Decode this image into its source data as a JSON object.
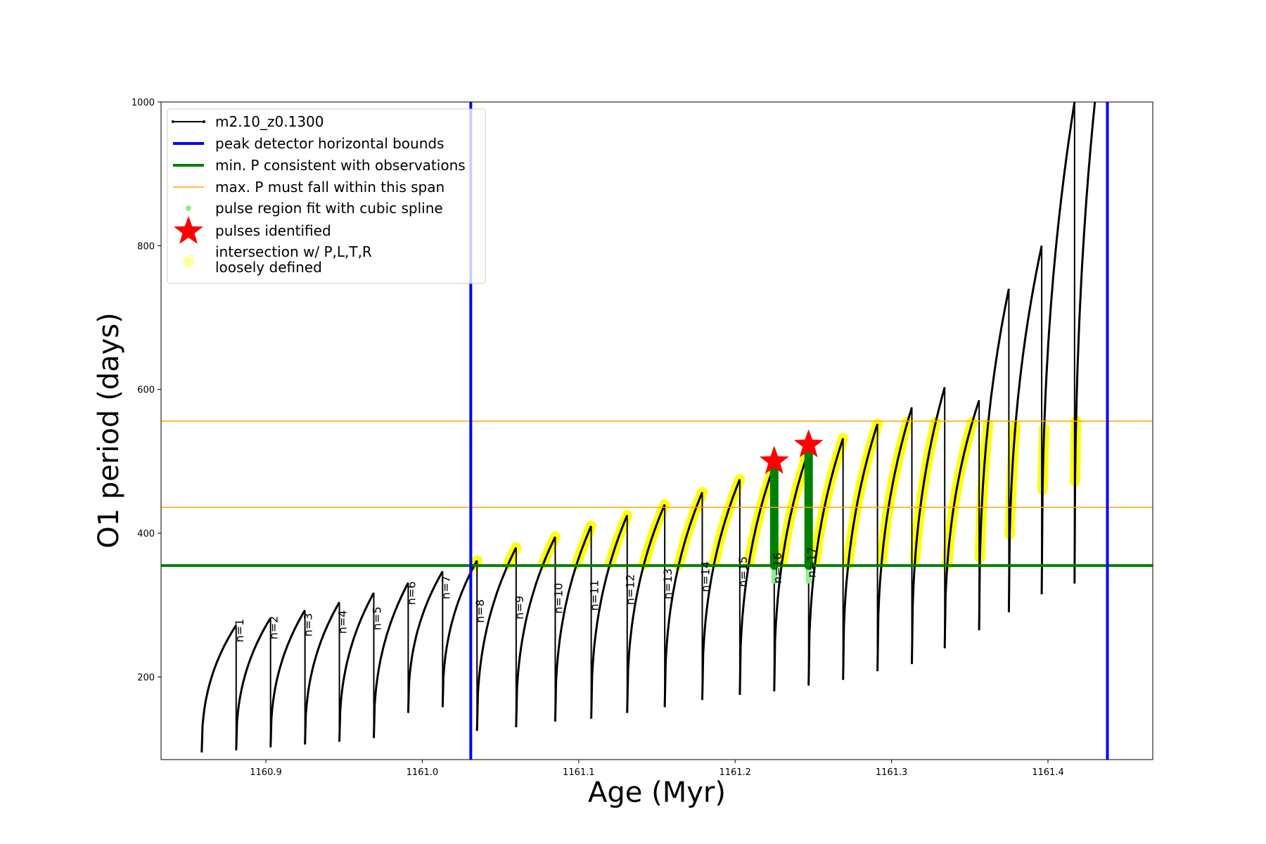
{
  "chart_data": {
    "type": "line",
    "xlabel": "Age (Myr)",
    "ylabel": "O1 period (days)",
    "xlim": [
      1160.833,
      1161.467
    ],
    "ylim": [
      85,
      1000
    ],
    "xticks": [
      "1160.9",
      "1161.0",
      "1161.1",
      "1161.2",
      "1161.3",
      "1161.4"
    ],
    "yticks": [
      "200",
      "400",
      "600",
      "800",
      "1000"
    ],
    "grid": false,
    "legend_position": "upper-left",
    "legend": [
      {
        "label": "m2.10_z0.1300",
        "color": "#000000",
        "marker": "line-dot"
      },
      {
        "label": "peak detector horizontal bounds",
        "color": "#0000ff",
        "marker": "line"
      },
      {
        "label": "min. P consistent with observations",
        "color": "#008000",
        "marker": "line"
      },
      {
        "label": "max. P must fall within this span",
        "color": "#ffa500",
        "marker": "thin-line"
      },
      {
        "label": "pulse region fit with cubic spline",
        "color": "#90ee90",
        "marker": "dot"
      },
      {
        "label": "pulses identified",
        "color": "#ff0000",
        "marker": "star"
      },
      {
        "label": "intersection w/ P,L,T,R",
        "label2": "loosely defined",
        "color": "#ffffa0",
        "marker": "circle"
      }
    ],
    "vertical_bounds": [
      1161.031,
      1161.438
    ],
    "min_period": 355,
    "max_period_span": [
      436,
      556
    ],
    "cycles": [
      {
        "start": 1160.859,
        "end": 1160.881,
        "min": 95,
        "max": 272
      },
      {
        "start": 1160.881,
        "end": 1160.903,
        "min": 98,
        "max": 282,
        "label": "n=1"
      },
      {
        "start": 1160.903,
        "end": 1160.925,
        "min": 102,
        "max": 293,
        "label": "n=2"
      },
      {
        "start": 1160.925,
        "end": 1160.947,
        "min": 106,
        "max": 304,
        "label": "n=3"
      },
      {
        "start": 1160.947,
        "end": 1160.969,
        "min": 110,
        "max": 317,
        "label": "n=4"
      },
      {
        "start": 1160.969,
        "end": 1160.991,
        "min": 115,
        "max": 331,
        "label": "n=5"
      },
      {
        "start": 1160.991,
        "end": 1161.013,
        "min": 150,
        "max": 347,
        "label": "n=6"
      },
      {
        "start": 1161.013,
        "end": 1161.035,
        "min": 158,
        "max": 362,
        "label": "n=7"
      },
      {
        "start": 1161.035,
        "end": 1161.06,
        "min": 125,
        "max": 380,
        "label": "n=8"
      },
      {
        "start": 1161.06,
        "end": 1161.085,
        "min": 130,
        "max": 395,
        "label": "n=9"
      },
      {
        "start": 1161.085,
        "end": 1161.108,
        "min": 138,
        "max": 410,
        "label": "n=10"
      },
      {
        "start": 1161.108,
        "end": 1161.131,
        "min": 142,
        "max": 425,
        "label": "n=11"
      },
      {
        "start": 1161.131,
        "end": 1161.155,
        "min": 150,
        "max": 440,
        "label": "n=12"
      },
      {
        "start": 1161.155,
        "end": 1161.179,
        "min": 158,
        "max": 457,
        "label": "n=13"
      },
      {
        "start": 1161.179,
        "end": 1161.203,
        "min": 168,
        "max": 475,
        "label": "n=14"
      },
      {
        "start": 1161.203,
        "end": 1161.225,
        "min": 175,
        "max": 495,
        "label": "n=15"
      },
      {
        "start": 1161.225,
        "end": 1161.247,
        "min": 180,
        "max": 515,
        "label": "n=16"
      },
      {
        "start": 1161.247,
        "end": 1161.269,
        "min": 188,
        "max": 532,
        "label": "n=17"
      },
      {
        "start": 1161.269,
        "end": 1161.291,
        "min": 196,
        "max": 552
      },
      {
        "start": 1161.291,
        "end": 1161.313,
        "min": 208,
        "max": 575
      },
      {
        "start": 1161.313,
        "end": 1161.334,
        "min": 218,
        "max": 603
      },
      {
        "start": 1161.334,
        "end": 1161.356,
        "min": 240,
        "max": 585
      },
      {
        "start": 1161.356,
        "end": 1161.375,
        "min": 265,
        "max": 740
      },
      {
        "start": 1161.375,
        "end": 1161.396,
        "min": 290,
        "max": 800
      },
      {
        "start": 1161.396,
        "end": 1161.417,
        "min": 315,
        "max": 1000
      },
      {
        "start": 1161.417,
        "end": 1161.43,
        "min": 330,
        "max": 1000
      }
    ],
    "pulses_identified": [
      {
        "x": 1161.225,
        "y": 500
      },
      {
        "x": 1161.247,
        "y": 523
      }
    ]
  }
}
